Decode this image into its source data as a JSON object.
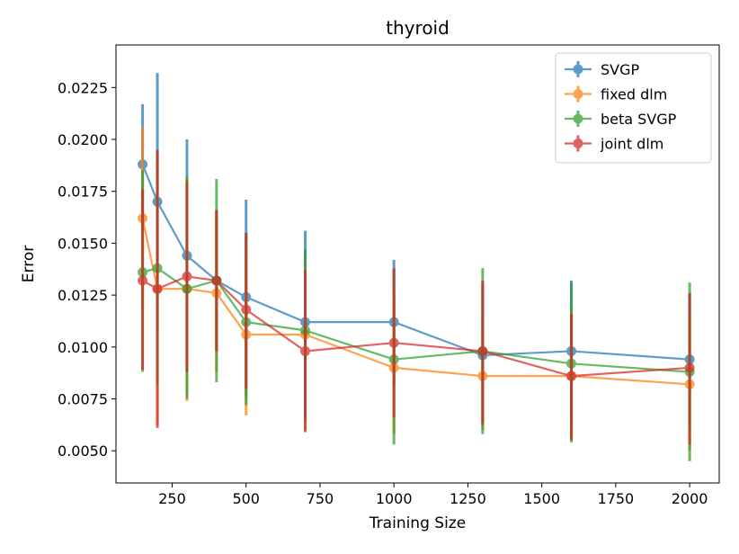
{
  "chart_data": {
    "type": "line",
    "title": "thyroid",
    "xlabel": "Training Size",
    "ylabel": "Error",
    "xlim": [
      60,
      2100
    ],
    "ylim": [
      0.00345,
      0.02455
    ],
    "xticks": [
      250,
      500,
      750,
      1000,
      1250,
      1500,
      1750,
      2000
    ],
    "xtick_labels": [
      "250",
      "500",
      "750",
      "1000",
      "1250",
      "1500",
      "1750",
      "2000"
    ],
    "yticks": [
      0.005,
      0.0075,
      0.01,
      0.0125,
      0.015,
      0.0175,
      0.02,
      0.0225
    ],
    "ytick_labels": [
      "0.0050",
      "0.0075",
      "0.0100",
      "0.0125",
      "0.0150",
      "0.0175",
      "0.0200",
      "0.0225"
    ],
    "grid": false,
    "legend_position": "top-right",
    "x": [
      150,
      200,
      300,
      400,
      500,
      700,
      1000,
      1300,
      1600,
      2000
    ],
    "series": [
      {
        "name": "SVGP",
        "color": "#1f77b4",
        "values": [
          0.0188,
          0.017,
          0.0144,
          0.0132,
          0.0124,
          0.0112,
          0.0112,
          0.0096,
          0.0098,
          0.0094
        ],
        "err_low": [
          0.0158,
          0.0108,
          0.0088,
          0.0098,
          0.0076,
          0.0068,
          0.0082,
          0.0062,
          0.0064,
          0.0062
        ],
        "err_high": [
          0.0217,
          0.0232,
          0.02,
          0.0166,
          0.0171,
          0.0156,
          0.0142,
          0.013,
          0.0132,
          0.0126
        ]
      },
      {
        "name": "fixed dlm",
        "color": "#ff7f0e",
        "values": [
          0.0162,
          0.0128,
          0.0128,
          0.0126,
          0.0106,
          0.0106,
          0.009,
          0.0086,
          0.0086,
          0.0082
        ],
        "err_low": [
          0.0118,
          0.0062,
          0.0074,
          0.0088,
          0.0067,
          0.006,
          0.0058,
          0.006,
          0.0055,
          0.005
        ],
        "err_high": [
          0.0206,
          0.0194,
          0.0182,
          0.0165,
          0.0145,
          0.0138,
          0.0125,
          0.0113,
          0.0117,
          0.0114
        ]
      },
      {
        "name": "beta SVGP",
        "color": "#2ca02c",
        "values": [
          0.0136,
          0.0138,
          0.0128,
          0.0132,
          0.0112,
          0.0108,
          0.0094,
          0.0098,
          0.0092,
          0.0088
        ],
        "err_low": [
          0.0088,
          0.0082,
          0.0075,
          0.0083,
          0.0072,
          0.0065,
          0.0053,
          0.0058,
          0.0054,
          0.0045
        ],
        "err_high": [
          0.0185,
          0.0195,
          0.0182,
          0.0181,
          0.0155,
          0.0147,
          0.0137,
          0.0138,
          0.0131,
          0.0131
        ]
      },
      {
        "name": "joint dlm",
        "color": "#d62728",
        "values": [
          0.0132,
          0.0128,
          0.0134,
          0.0132,
          0.0118,
          0.0098,
          0.0102,
          0.0098,
          0.0086,
          0.009
        ],
        "err_low": [
          0.0089,
          0.0061,
          0.0088,
          0.0098,
          0.008,
          0.0059,
          0.0066,
          0.0063,
          0.0055,
          0.0053
        ],
        "err_high": [
          0.0176,
          0.0195,
          0.018,
          0.0166,
          0.0155,
          0.0137,
          0.0138,
          0.0132,
          0.0116,
          0.0126
        ]
      }
    ]
  }
}
